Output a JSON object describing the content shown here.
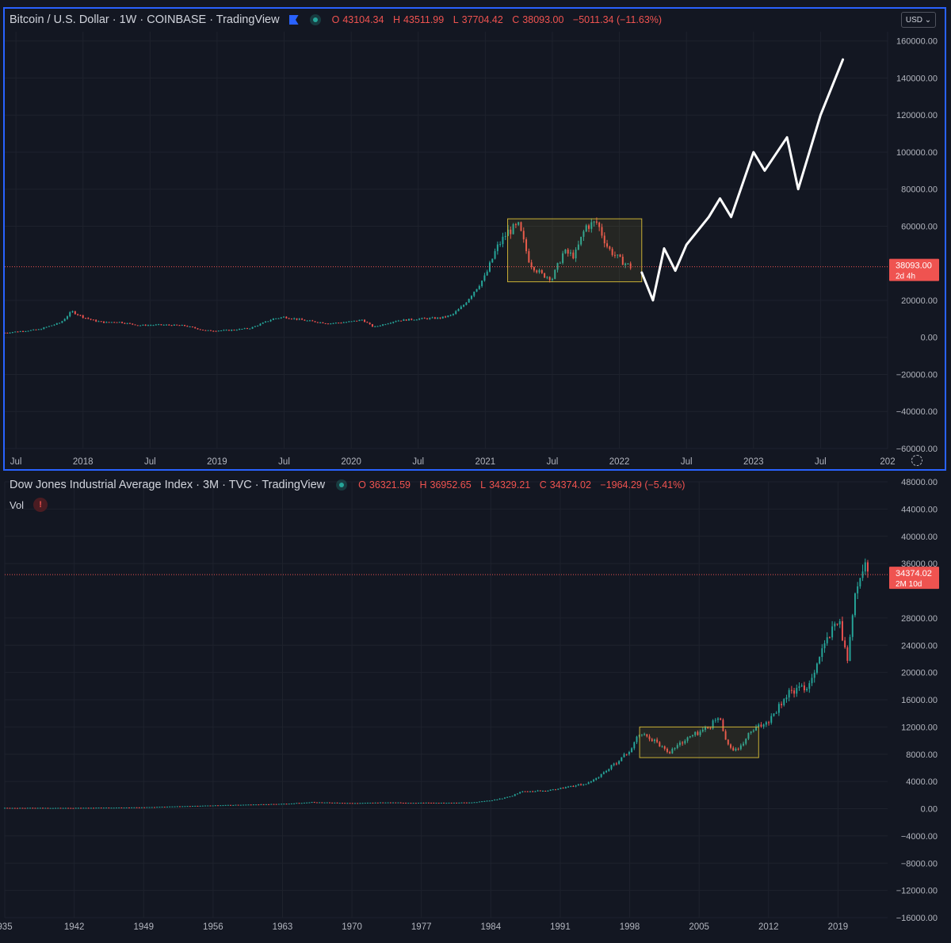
{
  "btc_pane": {
    "title": "Bitcoin / U.S. Dollar · 1W · COINBASE · TradingView",
    "ohlc": {
      "o_label": "O",
      "o": "43104.34",
      "h_label": "H",
      "h": "43511.99",
      "l_label": "L",
      "l": "37704.42",
      "c_label": "C",
      "c": "38093.00",
      "change": "−5011.34 (−11.63%)"
    },
    "currency": "USD",
    "price_badge": {
      "price": "38093.00",
      "countdown": "2d 4h"
    },
    "y_ticks": [
      "160000.00",
      "140000.00",
      "120000.00",
      "100000.00",
      "80000.00",
      "60000.00",
      "20000.00",
      "0.00",
      "−20000.00",
      "−40000.00",
      "−60000.00"
    ],
    "x_ticks": [
      "Jul",
      "2018",
      "Jul",
      "2019",
      "Jul",
      "2020",
      "Jul",
      "2021",
      "Jul",
      "2022",
      "Jul",
      "2023",
      "Jul",
      "202"
    ]
  },
  "dji_pane": {
    "title": "Dow Jones Industrial Average Index · 3M · TVC · TradingView",
    "ohlc": {
      "o_label": "O",
      "o": "36321.59",
      "h_label": "H",
      "h": "36952.65",
      "l_label": "L",
      "l": "34329.21",
      "c_label": "C",
      "c": "34374.02",
      "change": "−1964.29 (−5.41%)"
    },
    "volume_label": "Vol",
    "warning_icon_text": "!",
    "price_badge": {
      "price": "34374.02",
      "countdown": "2M 10d"
    },
    "y_ticks": [
      "48000.00",
      "44000.00",
      "40000.00",
      "36000.00",
      "28000.00",
      "24000.00",
      "20000.00",
      "16000.00",
      "12000.00",
      "8000.00",
      "4000.00",
      "0.00",
      "−4000.00",
      "−8000.00",
      "−12000.00",
      "−16000.00"
    ],
    "x_ticks": [
      "935",
      "1942",
      "1949",
      "1956",
      "1963",
      "1970",
      "1977",
      "1984",
      "1991",
      "1998",
      "2005",
      "2012",
      "2019"
    ]
  },
  "colors": {
    "bg": "#131722",
    "up": "#26a69a",
    "down": "#ef5350",
    "text": "#d1d4dc",
    "axis_text": "#b2b5be",
    "accent": "#2962ff",
    "box": "#c9b035",
    "drawing": "#ffffff"
  },
  "icons": {
    "flag": "flag-icon",
    "live": "live-dot-icon",
    "settings": "gear-icon",
    "warning": "warning-icon",
    "dropdown": "chevron-down-icon"
  },
  "chart_data": [
    {
      "type": "candlestick",
      "title": "Bitcoin / U.S. Dollar",
      "interval": "1W",
      "ylim": [
        -60000,
        165000
      ],
      "x_range": [
        "2017-06",
        "2024-01"
      ],
      "series": [
        {
          "points": [
            [
              "2017-06",
              2500
            ],
            [
              "2017-09",
              4200
            ],
            [
              "2017-11",
              8000
            ],
            [
              "2017-12",
              14000
            ],
            [
              "2018-01",
              11000
            ],
            [
              "2018-02",
              9000
            ],
            [
              "2018-03",
              8000
            ],
            [
              "2018-04",
              8500
            ],
            [
              "2018-06",
              6500
            ],
            [
              "2018-08",
              6800
            ],
            [
              "2018-10",
              6400
            ],
            [
              "2018-12",
              3600
            ],
            [
              "2019-02",
              3800
            ],
            [
              "2019-04",
              5000
            ],
            [
              "2019-06",
              10000
            ],
            [
              "2019-07",
              11000
            ],
            [
              "2019-09",
              9000
            ],
            [
              "2019-11",
              7500
            ],
            [
              "2020-01",
              8500
            ],
            [
              "2020-02",
              9500
            ],
            [
              "2020-03",
              5500
            ],
            [
              "2020-05",
              9000
            ],
            [
              "2020-07",
              10000
            ],
            [
              "2020-09",
              10500
            ],
            [
              "2020-10",
              12000
            ],
            [
              "2020-11",
              17000
            ],
            [
              "2020-12",
              25000
            ],
            [
              "2021-01",
              33000
            ],
            [
              "2021-02",
              48000
            ],
            [
              "2021-03",
              57000
            ],
            [
              "2021-04",
              60000
            ],
            [
              "2021-05",
              40000
            ],
            [
              "2021-06",
              34000
            ],
            [
              "2021-07",
              32000
            ],
            [
              "2021-08",
              46000
            ],
            [
              "2021-09",
              44000
            ],
            [
              "2021-10",
              60000
            ],
            [
              "2021-11",
              62000
            ],
            [
              "2021-12",
              48000
            ],
            [
              "2022-01",
              42000
            ],
            [
              "2022-02",
              38093
            ]
          ]
        }
      ],
      "annotations": {
        "box": {
          "x": [
            "2021-03",
            "2022-03"
          ],
          "y": [
            30000,
            64000
          ]
        },
        "drawing": [
          [
            "2022-03",
            35000
          ],
          [
            "2022-04",
            20000
          ],
          [
            "2022-05",
            48000
          ],
          [
            "2022-06",
            36000
          ],
          [
            "2022-07",
            50000
          ],
          [
            "2022-09",
            65000
          ],
          [
            "2022-10",
            75000
          ],
          [
            "2022-11",
            65000
          ],
          [
            "2023-01",
            100000
          ],
          [
            "2023-02",
            90000
          ],
          [
            "2023-04",
            108000
          ],
          [
            "2023-05",
            80000
          ],
          [
            "2023-07",
            120000
          ],
          [
            "2023-09",
            150000
          ]
        ],
        "last_price": 38093
      }
    },
    {
      "type": "candlestick",
      "title": "Dow Jones Industrial Average Index",
      "interval": "3M",
      "ylim": [
        -16000,
        48000
      ],
      "x_range": [
        1935,
        2024
      ],
      "series": [
        {
          "points": [
            [
              1935,
              120
            ],
            [
              1942,
              110
            ],
            [
              1949,
              200
            ],
            [
              1956,
              480
            ],
            [
              1963,
              700
            ],
            [
              1966,
              950
            ],
            [
              1970,
              800
            ],
            [
              1973,
              900
            ],
            [
              1977,
              850
            ],
            [
              1982,
              900
            ],
            [
              1984,
              1200
            ],
            [
              1986,
              1800
            ],
            [
              1987,
              2500
            ],
            [
              1990,
              2700
            ],
            [
              1991,
              3000
            ],
            [
              1994,
              3800
            ],
            [
              1996,
              6000
            ],
            [
              1998,
              8500
            ],
            [
              1999,
              11000
            ],
            [
              2000,
              10500
            ],
            [
              2002,
              8300
            ],
            [
              2003,
              9500
            ],
            [
              2004,
              10500
            ],
            [
              2006,
              12000
            ],
            [
              2007,
              13500
            ],
            [
              2008,
              9000
            ],
            [
              2009,
              8500
            ],
            [
              2010,
              11000
            ],
            [
              2012,
              13000
            ],
            [
              2014,
              17000
            ],
            [
              2016,
              18000
            ],
            [
              2017,
              22000
            ],
            [
              2018,
              25000
            ],
            [
              2019,
              28000
            ],
            [
              2020,
              22000
            ],
            [
              2020.5,
              29000
            ],
            [
              2021,
              33000
            ],
            [
              2021.7,
              36000
            ],
            [
              2022,
              34374
            ]
          ]
        }
      ],
      "annotations": {
        "box": {
          "x": [
            1999,
            2011
          ],
          "y": [
            7500,
            12000
          ]
        },
        "last_price": 34374.02
      }
    }
  ]
}
